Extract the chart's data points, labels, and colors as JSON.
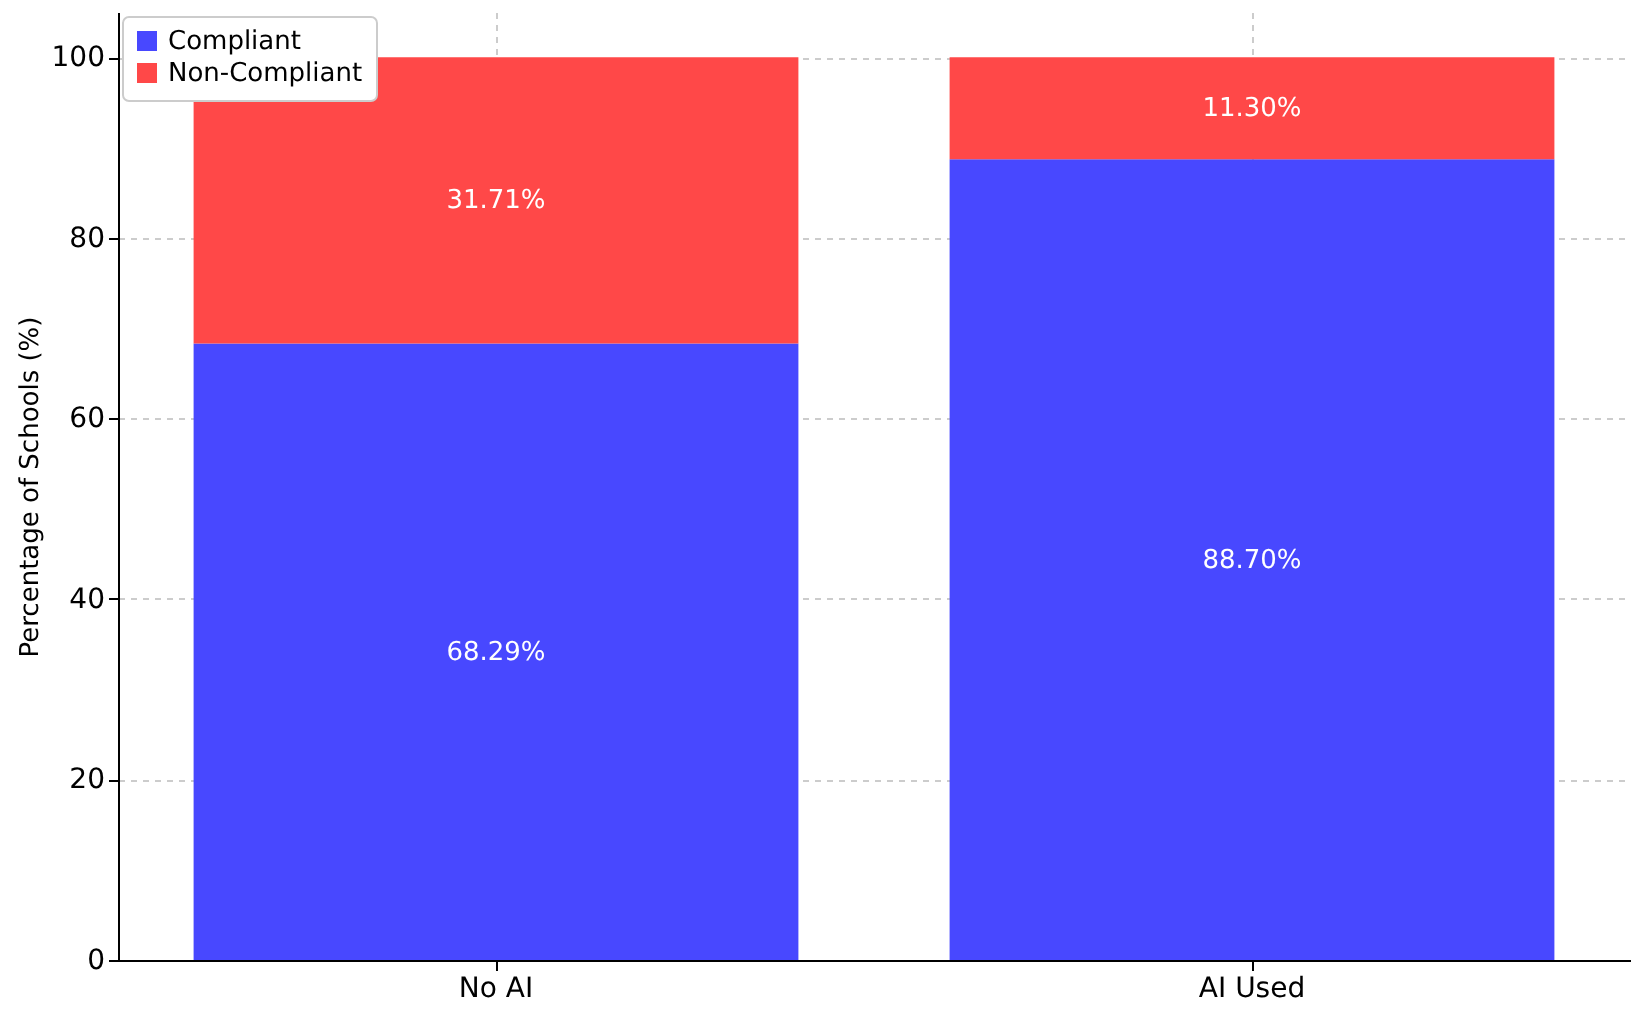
{
  "chart_data": {
    "type": "bar",
    "stacked": true,
    "ylabel": "Percentage of Schools (%)",
    "categories": [
      "No AI",
      "AI Used"
    ],
    "series": [
      {
        "name": "Compliant",
        "color": "#4848ff",
        "values": [
          68.29,
          88.7
        ],
        "value_labels": [
          "68.29%",
          "88.70%"
        ]
      },
      {
        "name": "Non-Compliant",
        "color": "#ff4848",
        "values": [
          31.71,
          11.3
        ],
        "value_labels": [
          "31.71%",
          "11.30%"
        ]
      }
    ],
    "ylim": [
      0,
      105
    ],
    "yticks": [
      0,
      20,
      40,
      60,
      80,
      100
    ],
    "grid": true,
    "legend": "top left"
  }
}
